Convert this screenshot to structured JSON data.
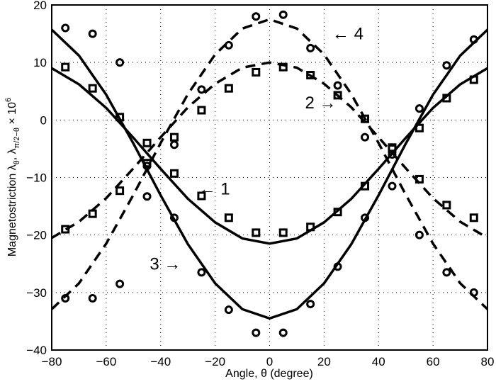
{
  "chart_data": {
    "type": "line",
    "title": "",
    "xlabel": "Angle, θ (degree)",
    "ylabel": {
      "main": "Magnetostriction λ",
      "sub1": "θ",
      "mid": ", λ",
      "sub2": "π/2−θ",
      "tail": " × 10",
      "sup": "6"
    },
    "xlim": [
      -80,
      80
    ],
    "ylim": [
      -40,
      20
    ],
    "xticks": [
      -80,
      -60,
      -40,
      -20,
      0,
      20,
      40,
      60,
      80
    ],
    "yticks": [
      -40,
      -30,
      -20,
      -10,
      0,
      10,
      20
    ],
    "grid": true,
    "color": "#000000",
    "curves": {
      "x": [
        -80,
        -70,
        -60,
        -50,
        -40,
        -30,
        -20,
        -10,
        0,
        10,
        20,
        30,
        40,
        50,
        60,
        70,
        80
      ],
      "series": [
        {
          "label": "1",
          "style": "solid",
          "y": [
            9.0,
            6.2,
            2.1,
            -3.1,
            -8.5,
            -13.7,
            -17.8,
            -20.6,
            -21.5,
            -20.6,
            -17.8,
            -13.7,
            -8.5,
            -3.1,
            2.1,
            6.2,
            9.0
          ]
        },
        {
          "label": "2",
          "style": "dashed",
          "y": [
            -20.5,
            -17.7,
            -13.6,
            -8.4,
            -3.0,
            2.2,
            6.3,
            9.1,
            10.0,
            9.1,
            6.3,
            2.2,
            -3.0,
            -8.4,
            -13.6,
            -17.7,
            -20.5
          ]
        },
        {
          "label": "3",
          "style": "solid",
          "y": [
            15.7,
            11.2,
            4.4,
            -4.1,
            -13.1,
            -21.6,
            -28.4,
            -32.9,
            -34.5,
            -32.9,
            -28.4,
            -21.6,
            -13.1,
            -4.1,
            4.4,
            11.2,
            15.7
          ]
        },
        {
          "label": "4",
          "style": "dashed",
          "y": [
            -32.9,
            -28.4,
            -21.5,
            -13.0,
            -4.0,
            4.5,
            11.4,
            15.9,
            17.5,
            15.9,
            11.4,
            4.5,
            -4.0,
            -13.0,
            -21.5,
            -28.4,
            -32.9
          ]
        }
      ]
    },
    "points": {
      "x": [
        -75,
        -65,
        -55,
        -45,
        -35,
        -25,
        -15,
        -5,
        5,
        15,
        25,
        35,
        45,
        55,
        65,
        75
      ],
      "series": [
        {
          "curve": "1",
          "marker": "square",
          "y": [
            9.2,
            5.5,
            0.5,
            -4.0,
            -9.3,
            -13.2,
            -17.0,
            -19.6,
            -19.6,
            -18.6,
            -16.0,
            -11.5,
            -4.8,
            -1.4,
            3.8,
            7.0
          ]
        },
        {
          "curve": "2",
          "marker": "square",
          "y": [
            -19.0,
            -16.3,
            -12.3,
            -7.5,
            -3.0,
            1.7,
            5.5,
            8.3,
            9.2,
            7.8,
            4.3,
            0.2,
            -5.0,
            -10.3,
            -14.8,
            -17.0
          ]
        },
        {
          "curve": "3",
          "marker": "circle",
          "y": [
            16.0,
            15.0,
            10.0,
            -8.0,
            -17.0,
            -26.5,
            -33.0,
            -37.0,
            -37.0,
            -32.0,
            -25.5,
            -17.0,
            -6.0,
            2.0,
            9.5,
            14.0
          ]
        },
        {
          "curve": "4",
          "marker": "circle",
          "y": [
            -31.0,
            -31.0,
            -28.5,
            -13.3,
            -4.3,
            5.3,
            13.0,
            18.0,
            18.3,
            12.5,
            6.0,
            -3.0,
            -11.5,
            -20.0,
            -26.5,
            -30.0
          ]
        }
      ]
    },
    "annotations": [
      {
        "text": "← 1",
        "x": -26,
        "y": -12
      },
      {
        "text": "2 →",
        "x": 13,
        "y": 3
      },
      {
        "text": "3 →",
        "x": -44,
        "y": -25
      },
      {
        "text": "← 4",
        "x": 23,
        "y": 15
      }
    ]
  }
}
